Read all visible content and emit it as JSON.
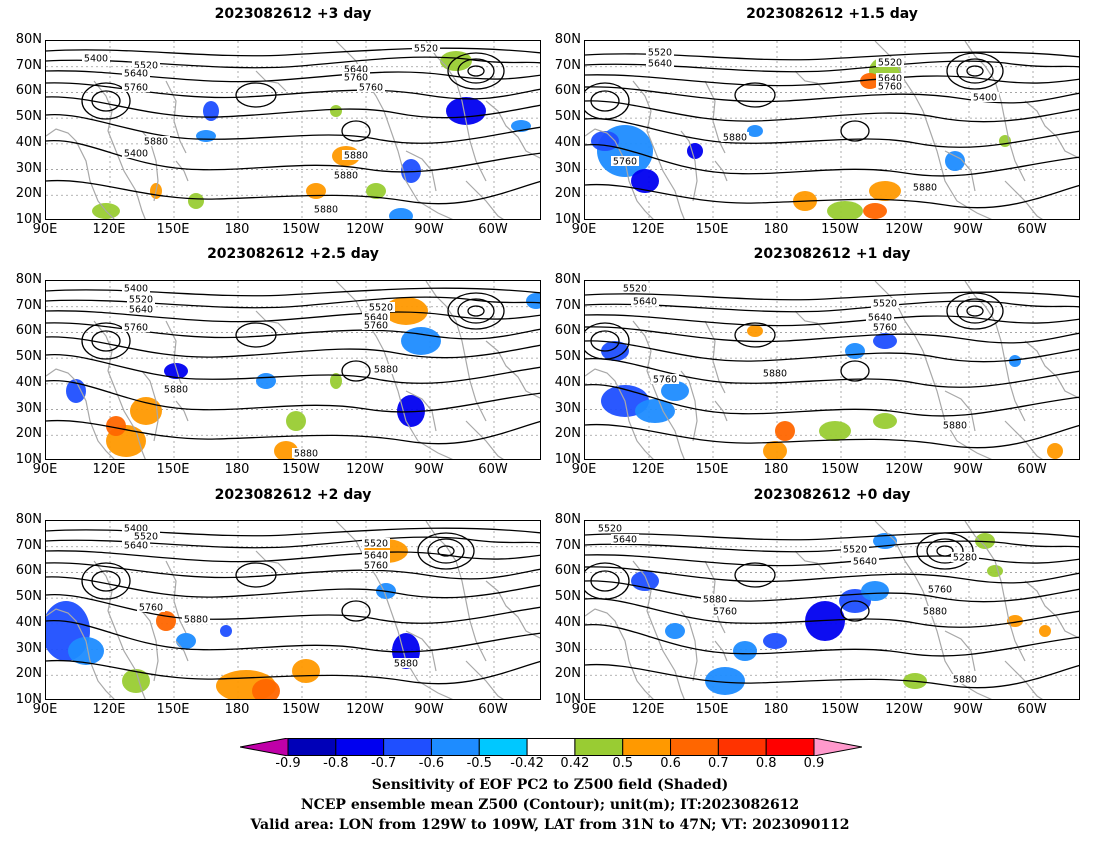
{
  "panels": [
    {
      "title": "2023082612 +3 day",
      "contour_labels": [
        "5400",
        "5520",
        "5640",
        "5760",
        "5880",
        "5400",
        "5520",
        "5640",
        "5760",
        "5760",
        "5880",
        "5880",
        "5880"
      ]
    },
    {
      "title": "2023082612 +1.5 day",
      "contour_labels": [
        "5520",
        "5640",
        "5520",
        "5640",
        "5760",
        "5400",
        "5880",
        "5760",
        "5880"
      ]
    },
    {
      "title": "2023082612 +2.5 day",
      "contour_labels": [
        "5400",
        "5520",
        "5640",
        "5760",
        "5520",
        "5640",
        "5760",
        "5880",
        "5880",
        "5880"
      ]
    },
    {
      "title": "2023082612 +1 day",
      "contour_labels": [
        "5520",
        "5640",
        "5520",
        "5640",
        "5760",
        "5760",
        "5880",
        "5880"
      ]
    },
    {
      "title": "2023082612 +2 day",
      "contour_labels": [
        "5400",
        "5520",
        "5640",
        "5520",
        "5640",
        "5760",
        "5760",
        "5880",
        "5880"
      ]
    },
    {
      "title": "2023082612 +0 day",
      "contour_labels": [
        "5520",
        "5640",
        "5520",
        "5640",
        "5280",
        "5760",
        "5880",
        "5760",
        "5880",
        "5880"
      ]
    }
  ],
  "axes": {
    "lat_labels": [
      "80N",
      "70N",
      "60N",
      "50N",
      "40N",
      "30N",
      "20N",
      "10N"
    ],
    "lon_labels": [
      "90E",
      "120E",
      "150E",
      "180",
      "150W",
      "120W",
      "90W",
      "60W"
    ]
  },
  "colorbar": {
    "labels": [
      "-0.9",
      "-0.8",
      "-0.7",
      "-0.6",
      "-0.5",
      "-0.42",
      "0.42",
      "0.5",
      "0.6",
      "0.7",
      "0.8",
      "0.9"
    ],
    "colors": [
      "#c000a8",
      "#0000b8",
      "#0000f0",
      "#1f4fff",
      "#1e8cff",
      "#00c8ff",
      "#ffffff",
      "#99cc33",
      "#ff9900",
      "#ff6600",
      "#ff3300",
      "#ff0000",
      "#ff99cc"
    ]
  },
  "footer": {
    "line1": "Sensitivity of EOF PC2 to Z500 field (Shaded)",
    "line2": "NCEP ensemble mean Z500 (Contour); unit(m); IT:2023082612",
    "line3": "Valid area: LON from 129W to 109W, LAT from 31N to 47N; VT: 2023090112"
  }
}
